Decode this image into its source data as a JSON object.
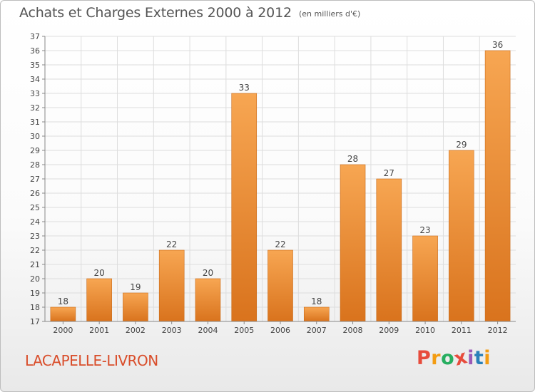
{
  "header": {
    "title": "Achats et Charges Externes 2000 à 2012",
    "subtitle": "(en milliers d'€)"
  },
  "footer": {
    "place": "LACAPELLE-LIVRON",
    "logo_text": "Proxiti",
    "logo_colors": [
      "#e74c3c",
      "#f39c12",
      "#27ae60",
      "#e74c3c",
      "#9b59b6",
      "#2980b9",
      "#f39c12"
    ]
  },
  "colors": {
    "bar_light": "#f6a04e",
    "bar_dark": "#d9731d",
    "grid": "#dddddd",
    "axis": "#888888",
    "text": "#444444"
  },
  "chart_data": {
    "type": "bar",
    "categories": [
      "2000",
      "2001",
      "2002",
      "2003",
      "2004",
      "2005",
      "2006",
      "2007",
      "2008",
      "2009",
      "2010",
      "2011",
      "2012"
    ],
    "values": [
      18,
      20,
      19,
      22,
      20,
      33,
      22,
      18,
      28,
      27,
      23,
      29,
      36
    ],
    "data_labels": [
      "18",
      "20",
      "19",
      "22",
      "20",
      "33",
      "22",
      "18",
      "28",
      "27",
      "23",
      "29",
      "36"
    ],
    "ylim": [
      17,
      37
    ],
    "yticks": [
      17,
      18,
      19,
      20,
      21,
      22,
      23,
      24,
      25,
      26,
      27,
      28,
      29,
      30,
      31,
      32,
      33,
      34,
      35,
      36,
      37
    ],
    "grid": true
  }
}
